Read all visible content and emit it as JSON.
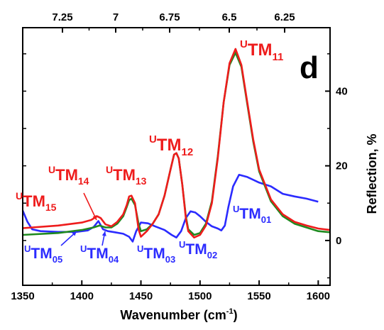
{
  "chart_data": {
    "type": "line",
    "panel_label": "d",
    "xlabel": "Wavenumber (cm",
    "xlabel_sup": "-1",
    "xlabel_close": ")",
    "ylabel": "Reflection, %",
    "xlim": [
      1350,
      1610
    ],
    "ylim": [
      -12,
      57
    ],
    "x_ticks": [
      1350,
      1400,
      1450,
      1500,
      1550,
      1600
    ],
    "y_ticks": [
      0,
      20,
      40
    ],
    "top_ticks": [
      "7.25",
      "7",
      "6.75",
      "6.5",
      "6.25"
    ],
    "grid": false,
    "colors": {
      "red": "#ee1c1c",
      "green": "#1f8a1f",
      "blue": "#2b2bff",
      "axis": "#000000"
    },
    "series": [
      {
        "color": "red",
        "points": [
          [
            1350,
            3.3
          ],
          [
            1380,
            4.0
          ],
          [
            1400,
            4.8
          ],
          [
            1408,
            5.5
          ],
          [
            1413,
            6.5
          ],
          [
            1416,
            6.0
          ],
          [
            1420,
            4.3
          ],
          [
            1425,
            3.8
          ],
          [
            1430,
            5.0
          ],
          [
            1435,
            7.0
          ],
          [
            1438,
            9.5
          ],
          [
            1440,
            11.8
          ],
          [
            1442,
            12.0
          ],
          [
            1445,
            10.0
          ],
          [
            1448,
            3.0
          ],
          [
            1450,
            1.0
          ],
          [
            1455,
            2.5
          ],
          [
            1460,
            4.5
          ],
          [
            1465,
            7.0
          ],
          [
            1470,
            12.0
          ],
          [
            1475,
            19.0
          ],
          [
            1478,
            23.0
          ],
          [
            1480,
            23.4
          ],
          [
            1482,
            22.0
          ],
          [
            1485,
            15.0
          ],
          [
            1488,
            6.0
          ],
          [
            1490,
            2.5
          ],
          [
            1495,
            0.8
          ],
          [
            1500,
            1.5
          ],
          [
            1505,
            4.0
          ],
          [
            1510,
            10.0
          ],
          [
            1515,
            22.0
          ],
          [
            1520,
            37.0
          ],
          [
            1525,
            47.5
          ],
          [
            1530,
            51.3
          ],
          [
            1535,
            47.0
          ],
          [
            1540,
            37.0
          ],
          [
            1545,
            27.0
          ],
          [
            1550,
            19.0
          ],
          [
            1560,
            11.0
          ],
          [
            1570,
            7.0
          ],
          [
            1580,
            5.0
          ],
          [
            1590,
            4.0
          ],
          [
            1600,
            3.2
          ],
          [
            1610,
            2.8
          ]
        ]
      },
      {
        "color": "green",
        "points": [
          [
            1350,
            1.5
          ],
          [
            1380,
            2.0
          ],
          [
            1400,
            2.8
          ],
          [
            1410,
            3.5
          ],
          [
            1415,
            4.0
          ],
          [
            1420,
            3.5
          ],
          [
            1425,
            3.5
          ],
          [
            1430,
            4.5
          ],
          [
            1435,
            6.5
          ],
          [
            1438,
            9.0
          ],
          [
            1440,
            10.8
          ],
          [
            1442,
            11.2
          ],
          [
            1445,
            9.5
          ],
          [
            1448,
            4.5
          ],
          [
            1450,
            2.5
          ],
          [
            1455,
            3.0
          ],
          [
            1460,
            4.5
          ],
          [
            1465,
            7.0
          ],
          [
            1470,
            12.0
          ],
          [
            1475,
            19.0
          ],
          [
            1478,
            23.0
          ],
          [
            1480,
            23.4
          ],
          [
            1482,
            22.0
          ],
          [
            1485,
            15.0
          ],
          [
            1488,
            6.5
          ],
          [
            1490,
            3.0
          ],
          [
            1495,
            1.5
          ],
          [
            1500,
            2.0
          ],
          [
            1505,
            4.5
          ],
          [
            1510,
            10.5
          ],
          [
            1515,
            22.5
          ],
          [
            1520,
            37.0
          ],
          [
            1525,
            47.0
          ],
          [
            1530,
            50.3
          ],
          [
            1535,
            46.5
          ],
          [
            1540,
            36.5
          ],
          [
            1545,
            26.5
          ],
          [
            1550,
            18.5
          ],
          [
            1560,
            10.5
          ],
          [
            1570,
            6.5
          ],
          [
            1580,
            4.5
          ],
          [
            1590,
            3.5
          ],
          [
            1600,
            2.5
          ],
          [
            1610,
            2.2
          ]
        ]
      },
      {
        "color": "blue",
        "points": [
          [
            1350,
            8.0
          ],
          [
            1354,
            5.0
          ],
          [
            1358,
            3.0
          ],
          [
            1365,
            2.5
          ],
          [
            1380,
            2.3
          ],
          [
            1395,
            2.3
          ],
          [
            1405,
            2.7
          ],
          [
            1410,
            3.6
          ],
          [
            1414,
            5.2
          ],
          [
            1418,
            3.0
          ],
          [
            1422,
            2.5
          ],
          [
            1428,
            2.2
          ],
          [
            1435,
            1.8
          ],
          [
            1440,
            1.0
          ],
          [
            1443,
            -0.3
          ],
          [
            1446,
            2.5
          ],
          [
            1450,
            4.8
          ],
          [
            1456,
            4.6
          ],
          [
            1462,
            3.8
          ],
          [
            1470,
            2.8
          ],
          [
            1476,
            1.5
          ],
          [
            1480,
            0.8
          ],
          [
            1484,
            2.5
          ],
          [
            1488,
            6.0
          ],
          [
            1492,
            7.8
          ],
          [
            1496,
            7.5
          ],
          [
            1500,
            6.5
          ],
          [
            1505,
            5.0
          ],
          [
            1510,
            3.8
          ],
          [
            1515,
            3.2
          ],
          [
            1518,
            2.7
          ],
          [
            1521,
            4.0
          ],
          [
            1524,
            9.0
          ],
          [
            1528,
            14.5
          ],
          [
            1533,
            17.6
          ],
          [
            1540,
            17.0
          ],
          [
            1550,
            15.5
          ],
          [
            1560,
            14.5
          ],
          [
            1570,
            12.5
          ],
          [
            1580,
            11.8
          ],
          [
            1590,
            11.2
          ],
          [
            1600,
            10.4
          ]
        ]
      }
    ],
    "annotations": [
      {
        "base": "TM",
        "sup": "U",
        "sub": "11",
        "color": "red"
      },
      {
        "base": "TM",
        "sup": "U",
        "sub": "12",
        "color": "red"
      },
      {
        "base": "TM",
        "sup": "U",
        "sub": "13",
        "color": "red"
      },
      {
        "base": "TM",
        "sup": "U",
        "sub": "14",
        "color": "red"
      },
      {
        "base": "TM",
        "sup": "U",
        "sub": "15",
        "color": "red"
      },
      {
        "base": "TM",
        "sup": "U",
        "sub": "01",
        "color": "blue"
      },
      {
        "base": "TM",
        "sup": "U",
        "sub": "02",
        "color": "blue"
      },
      {
        "base": "TM",
        "sup": "U",
        "sub": "03",
        "color": "blue"
      },
      {
        "base": "TM",
        "sup": "U",
        "sub": "04",
        "color": "blue"
      },
      {
        "base": "TM",
        "sup": "U",
        "sub": "05",
        "color": "blue"
      }
    ]
  }
}
